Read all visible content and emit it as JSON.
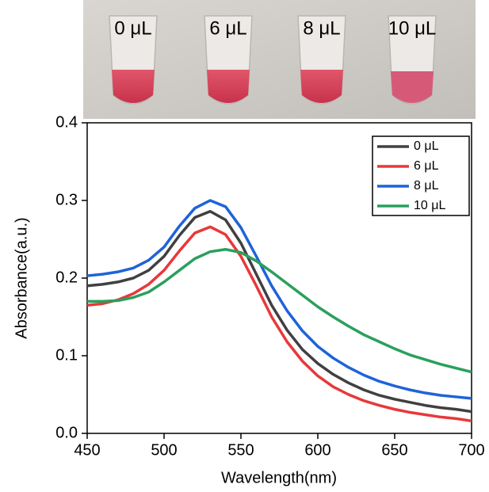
{
  "chart_data": {
    "type": "line",
    "photo_labels": [
      "0 μL",
      "6 μL",
      "8 μL",
      "10 μL"
    ],
    "x_label": "Wavelength(nm)",
    "y_label": "Absorbance(a.u.)",
    "x": [
      450,
      460,
      470,
      480,
      490,
      500,
      510,
      520,
      530,
      540,
      550,
      560,
      570,
      580,
      590,
      600,
      610,
      620,
      630,
      640,
      650,
      660,
      670,
      680,
      690,
      700
    ],
    "series": [
      {
        "name": "0 μL",
        "color": "#404040",
        "values": [
          0.19,
          0.192,
          0.195,
          0.2,
          0.21,
          0.228,
          0.255,
          0.278,
          0.286,
          0.275,
          0.245,
          0.205,
          0.165,
          0.133,
          0.108,
          0.09,
          0.076,
          0.065,
          0.056,
          0.049,
          0.044,
          0.04,
          0.036,
          0.033,
          0.031,
          0.028
        ]
      },
      {
        "name": "6 μL",
        "color": "#e8383a",
        "values": [
          0.165,
          0.167,
          0.172,
          0.18,
          0.192,
          0.21,
          0.235,
          0.258,
          0.266,
          0.256,
          0.228,
          0.19,
          0.15,
          0.118,
          0.093,
          0.074,
          0.06,
          0.05,
          0.042,
          0.036,
          0.031,
          0.027,
          0.024,
          0.021,
          0.019,
          0.016
        ]
      },
      {
        "name": "8 μL",
        "color": "#1f63d8",
        "values": [
          0.203,
          0.205,
          0.208,
          0.213,
          0.223,
          0.24,
          0.267,
          0.29,
          0.3,
          0.292,
          0.265,
          0.228,
          0.19,
          0.158,
          0.132,
          0.112,
          0.097,
          0.085,
          0.075,
          0.067,
          0.061,
          0.056,
          0.052,
          0.049,
          0.047,
          0.045
        ]
      },
      {
        "name": "10 μL",
        "color": "#2aa05c",
        "values": [
          0.17,
          0.17,
          0.171,
          0.175,
          0.182,
          0.195,
          0.21,
          0.225,
          0.234,
          0.237,
          0.233,
          0.222,
          0.208,
          0.193,
          0.178,
          0.163,
          0.15,
          0.138,
          0.127,
          0.118,
          0.109,
          0.101,
          0.095,
          0.089,
          0.084,
          0.079
        ]
      }
    ],
    "xlim": [
      450,
      700
    ],
    "xticks": [
      450,
      500,
      550,
      600,
      650,
      700
    ],
    "ylim": [
      0,
      0.4
    ],
    "yticks": [
      {
        "value": 0,
        "label": "0.0"
      },
      0.1,
      0.2,
      0.3,
      0.4
    ],
    "legend": "upper-right"
  }
}
